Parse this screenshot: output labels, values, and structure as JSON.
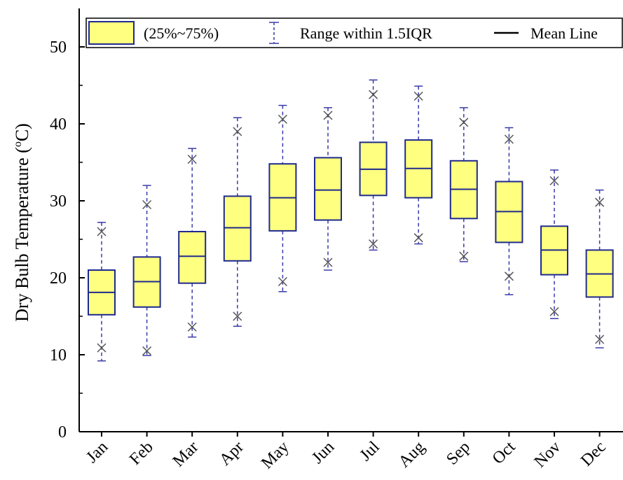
{
  "chart_data": {
    "type": "box",
    "ylabel_main": "Dry Bulb Temperature (",
    "ylabel_sup": "o",
    "ylabel_unit": "C)",
    "ylim": [
      0,
      55
    ],
    "yticks": [
      0,
      10,
      20,
      30,
      40,
      50
    ],
    "grid": false,
    "legend_position": "top",
    "legend": {
      "box_label": "(25%~75%)",
      "whisker_label": "Range within 1.5IQR",
      "mean_label": "Mean Line"
    },
    "colors": {
      "box_fill": "#ffff80",
      "box_stroke": "#1f2a8c",
      "whisker": "#3a3aa8",
      "outlier": "#555555",
      "axis": "#000000"
    },
    "categories": [
      "Jan",
      "Feb",
      "Mar",
      "Apr",
      "May",
      "Jun",
      "Jul",
      "Aug",
      "Sep",
      "Oct",
      "Nov",
      "Dec"
    ],
    "boxes": [
      {
        "month": "Jan",
        "whisker_low": 9.2,
        "q1": 15.2,
        "mean": 18.1,
        "q3": 21.0,
        "whisker_high": 27.2,
        "outlier_low": 10.9,
        "outlier_high": 26.0
      },
      {
        "month": "Feb",
        "whisker_low": 9.9,
        "q1": 16.2,
        "mean": 19.5,
        "q3": 22.7,
        "whisker_high": 32.0,
        "outlier_low": 10.5,
        "outlier_high": 29.5
      },
      {
        "month": "Mar",
        "whisker_low": 12.3,
        "q1": 19.3,
        "mean": 22.8,
        "q3": 26.0,
        "whisker_high": 36.8,
        "outlier_low": 13.6,
        "outlier_high": 35.4
      },
      {
        "month": "Apr",
        "whisker_low": 13.7,
        "q1": 22.2,
        "mean": 26.5,
        "q3": 30.6,
        "whisker_high": 40.8,
        "outlier_low": 15.0,
        "outlier_high": 39.0
      },
      {
        "month": "May",
        "whisker_low": 18.2,
        "q1": 26.1,
        "mean": 30.4,
        "q3": 34.8,
        "whisker_high": 42.4,
        "outlier_low": 19.5,
        "outlier_high": 40.6
      },
      {
        "month": "Jun",
        "whisker_low": 21.0,
        "q1": 27.5,
        "mean": 31.4,
        "q3": 35.6,
        "whisker_high": 42.1,
        "outlier_low": 22.0,
        "outlier_high": 41.1
      },
      {
        "month": "Jul",
        "whisker_low": 23.6,
        "q1": 30.7,
        "mean": 34.1,
        "q3": 37.6,
        "whisker_high": 45.7,
        "outlier_low": 24.4,
        "outlier_high": 43.8
      },
      {
        "month": "Aug",
        "whisker_low": 24.4,
        "q1": 30.4,
        "mean": 34.2,
        "q3": 37.9,
        "whisker_high": 44.9,
        "outlier_low": 25.2,
        "outlier_high": 43.6
      },
      {
        "month": "Sep",
        "whisker_low": 22.1,
        "q1": 27.7,
        "mean": 31.5,
        "q3": 35.2,
        "whisker_high": 42.1,
        "outlier_low": 22.8,
        "outlier_high": 40.2
      },
      {
        "month": "Oct",
        "whisker_low": 17.8,
        "q1": 24.6,
        "mean": 28.6,
        "q3": 32.5,
        "whisker_high": 39.5,
        "outlier_low": 20.2,
        "outlier_high": 38.0
      },
      {
        "month": "Nov",
        "whisker_low": 14.7,
        "q1": 20.4,
        "mean": 23.6,
        "q3": 26.7,
        "whisker_high": 34.0,
        "outlier_low": 15.6,
        "outlier_high": 32.6
      },
      {
        "month": "Dec",
        "whisker_low": 10.9,
        "q1": 17.5,
        "mean": 20.5,
        "q3": 23.6,
        "whisker_high": 31.4,
        "outlier_low": 12.0,
        "outlier_high": 29.8
      }
    ]
  }
}
